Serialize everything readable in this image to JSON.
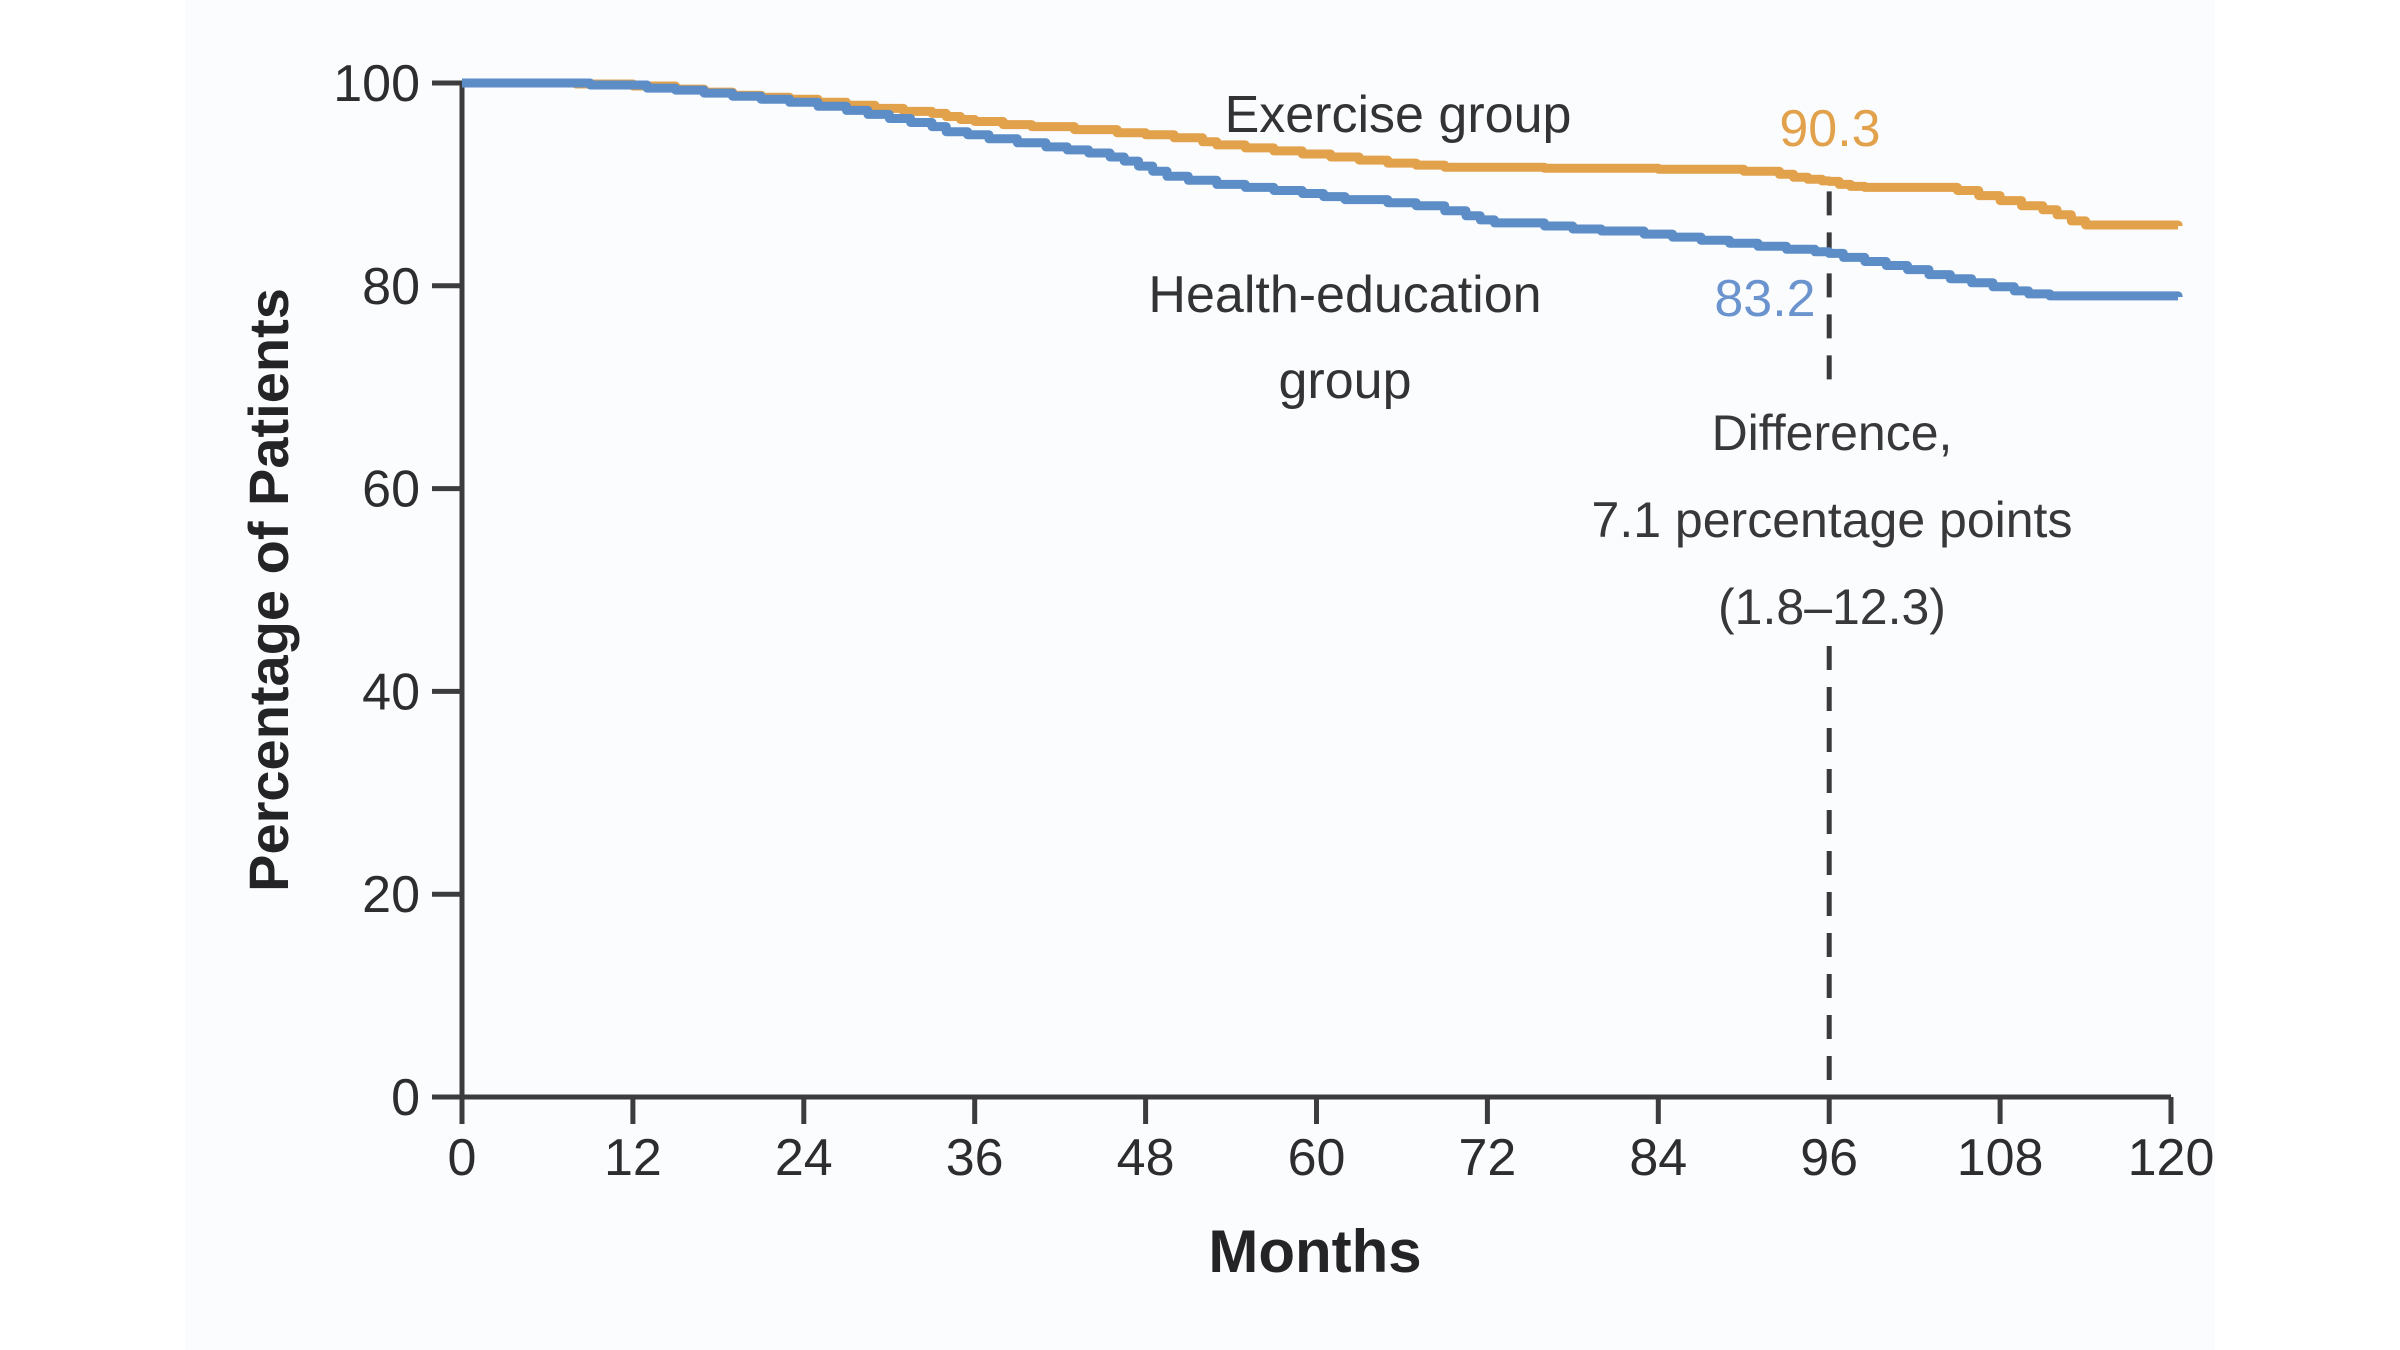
{
  "figure": {
    "background": "#ffffff",
    "panel_tint": "#fbfcfe",
    "axis_color": "#3c3c3e",
    "dash_color": "#3a3a3c"
  },
  "chart_data": {
    "type": "line",
    "subtype": "kaplan-meier-step",
    "title": "",
    "xlabel": "Months",
    "ylabel": "Percentage of Patients",
    "xlim": [
      0,
      120
    ],
    "ylim": [
      0,
      100
    ],
    "x_ticks": [
      0,
      12,
      24,
      36,
      48,
      60,
      72,
      84,
      96,
      108,
      120
    ],
    "y_ticks": [
      0,
      20,
      40,
      60,
      80,
      100
    ],
    "grid": false,
    "legend_position": "inline-labels",
    "series": [
      {
        "name": "Exercise group",
        "color": "#e2a14b",
        "value_at_96": 90.3,
        "value_label": "90.3",
        "end_value": 85.9,
        "points": [
          [
            0,
            100
          ],
          [
            8,
            99.9
          ],
          [
            12,
            99.7
          ],
          [
            15,
            99.4
          ],
          [
            17,
            99.1
          ],
          [
            19,
            98.8
          ],
          [
            21,
            98.6
          ],
          [
            23,
            98.4
          ],
          [
            25,
            98.1
          ],
          [
            27,
            97.8
          ],
          [
            29,
            97.5
          ],
          [
            31,
            97.2
          ],
          [
            33,
            97.0
          ],
          [
            34,
            96.7
          ],
          [
            35,
            96.4
          ],
          [
            36,
            96.2
          ],
          [
            38,
            95.9
          ],
          [
            40,
            95.7
          ],
          [
            43,
            95.4
          ],
          [
            46,
            95.1
          ],
          [
            48,
            94.9
          ],
          [
            50,
            94.6
          ],
          [
            52,
            94.2
          ],
          [
            53,
            93.9
          ],
          [
            55,
            93.6
          ],
          [
            57,
            93.3
          ],
          [
            59,
            93.0
          ],
          [
            61,
            92.7
          ],
          [
            63,
            92.4
          ],
          [
            65,
            92.1
          ],
          [
            67,
            91.9
          ],
          [
            69,
            91.7
          ],
          [
            76,
            91.6
          ],
          [
            84,
            91.5
          ],
          [
            90,
            91.3
          ],
          [
            92.5,
            91.0
          ],
          [
            93.5,
            90.7
          ],
          [
            94.5,
            90.5
          ],
          [
            95.5,
            90.35
          ],
          [
            96,
            90.3
          ],
          [
            96.7,
            90.0
          ],
          [
            97.5,
            89.8
          ],
          [
            98.5,
            89.7
          ],
          [
            105,
            89.4
          ],
          [
            106.5,
            88.9
          ],
          [
            108,
            88.4
          ],
          [
            109.5,
            87.9
          ],
          [
            111,
            87.5
          ],
          [
            112,
            87.0
          ],
          [
            113,
            86.4
          ],
          [
            114,
            86.0
          ],
          [
            120.5,
            85.9
          ]
        ]
      },
      {
        "name": "Health-education group",
        "name_line1": "Health-education",
        "name_line2": "group",
        "color": "#5d8dc6",
        "value_at_96": 83.2,
        "value_label": "83.2",
        "end_value": 78.9,
        "points": [
          [
            0,
            100
          ],
          [
            9,
            99.8
          ],
          [
            13,
            99.5
          ],
          [
            15,
            99.3
          ],
          [
            17,
            99.0
          ],
          [
            19,
            98.7
          ],
          [
            21,
            98.4
          ],
          [
            23,
            98.1
          ],
          [
            25,
            97.7
          ],
          [
            27,
            97.3
          ],
          [
            28.5,
            96.9
          ],
          [
            30,
            96.5
          ],
          [
            31.5,
            96.1
          ],
          [
            33,
            95.7
          ],
          [
            34,
            95.2
          ],
          [
            35.5,
            94.9
          ],
          [
            37,
            94.5
          ],
          [
            39,
            94.1
          ],
          [
            41,
            93.7
          ],
          [
            42.5,
            93.4
          ],
          [
            44,
            93.1
          ],
          [
            45.5,
            92.7
          ],
          [
            46.5,
            92.3
          ],
          [
            47.5,
            91.8
          ],
          [
            48.5,
            91.3
          ],
          [
            49.5,
            90.8
          ],
          [
            51,
            90.4
          ],
          [
            53,
            90.0
          ],
          [
            55,
            89.7
          ],
          [
            57,
            89.4
          ],
          [
            59,
            89.1
          ],
          [
            60.5,
            88.8
          ],
          [
            62,
            88.5
          ],
          [
            65,
            88.2
          ],
          [
            67,
            87.9
          ],
          [
            69,
            87.4
          ],
          [
            70.5,
            86.9
          ],
          [
            71.5,
            86.5
          ],
          [
            72.5,
            86.2
          ],
          [
            76,
            85.9
          ],
          [
            78,
            85.6
          ],
          [
            80,
            85.4
          ],
          [
            83,
            85.1
          ],
          [
            85,
            84.8
          ],
          [
            87,
            84.5
          ],
          [
            89,
            84.2
          ],
          [
            91,
            83.9
          ],
          [
            93,
            83.6
          ],
          [
            95,
            83.35
          ],
          [
            96,
            83.2
          ],
          [
            97,
            82.8
          ],
          [
            98.5,
            82.4
          ],
          [
            100,
            82.0
          ],
          [
            101.5,
            81.6
          ],
          [
            103,
            81.1
          ],
          [
            104.5,
            80.7
          ],
          [
            106,
            80.3
          ],
          [
            107.5,
            79.9
          ],
          [
            109,
            79.5
          ],
          [
            110,
            79.2
          ],
          [
            111.5,
            79.0
          ],
          [
            120.5,
            78.9
          ]
        ]
      }
    ],
    "annotation": {
      "at_month": 96,
      "lines": [
        "Difference,",
        "7.1 percentage points",
        "(1.8–12.3)"
      ]
    }
  }
}
